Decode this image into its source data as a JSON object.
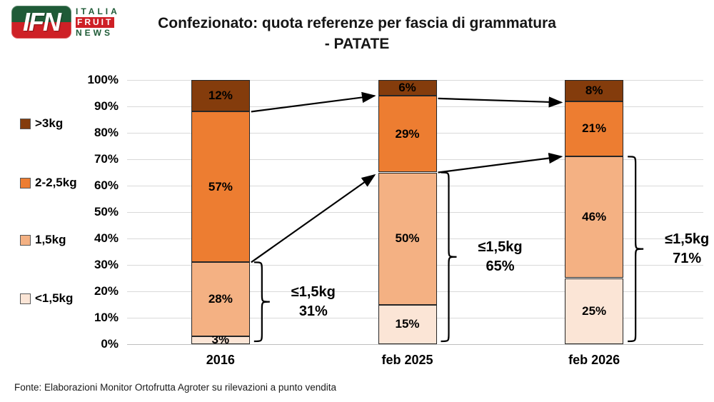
{
  "logo": {
    "mark": "IFN",
    "word1": "ITALIA",
    "word2": "FRUIT",
    "word3": "NEWS",
    "green": "#1f5b37",
    "red": "#ce2026"
  },
  "title": {
    "line1": "Confezionato: quota referenze per fascia di grammatura",
    "line2": "- PATATE"
  },
  "legend": {
    "items": [
      {
        "label": ">3kg",
        "color": "#843C0C"
      },
      {
        "label": "2-2,5kg",
        "color": "#ED7D31"
      },
      {
        "label": "1,5kg",
        "color": "#F4B183"
      },
      {
        "label": "<1,5kg",
        "color": "#FBE5D6"
      }
    ]
  },
  "chart_data": {
    "type": "bar",
    "stacked": true,
    "title": "Confezionato: quota referenze per fascia di grammatura - PATATE",
    "categories": [
      "2016",
      "feb 2025",
      "feb 2026"
    ],
    "series": [
      {
        "name": "<1,5kg",
        "color": "#FBE5D6",
        "values": [
          3,
          15,
          25
        ]
      },
      {
        "name": "1,5kg",
        "color": "#F4B183",
        "values": [
          28,
          50,
          46
        ]
      },
      {
        "name": "2-2,5kg",
        "color": "#ED7D31",
        "values": [
          57,
          29,
          21
        ]
      },
      {
        "name": ">3kg",
        "color": "#843C0C",
        "values": [
          12,
          6,
          8
        ]
      }
    ],
    "value_suffix": "%",
    "ylim": [
      0,
      100
    ],
    "yticks": [
      "0%",
      "10%",
      "20%",
      "30%",
      "40%",
      "50%",
      "60%",
      "70%",
      "80%",
      "90%",
      "100%"
    ],
    "grid": true,
    "legend_position": "left",
    "annotations": [
      {
        "label": "≤1,5kg",
        "value": "31%",
        "category_index": 0,
        "span_pct": [
          0,
          31
        ]
      },
      {
        "label": "≤1,5kg",
        "value": "65%",
        "category_index": 1,
        "span_pct": [
          0,
          65
        ]
      },
      {
        "label": "≤1,5kg",
        "value": "71%",
        "category_index": 2,
        "span_pct": [
          0,
          71
        ]
      }
    ],
    "arrows": [
      {
        "from": {
          "cat": 0,
          "pct": 88
        },
        "to": {
          "cat": 1,
          "pct": 94
        }
      },
      {
        "from": {
          "cat": 0,
          "pct": 31
        },
        "to": {
          "cat": 1,
          "pct": 64
        }
      },
      {
        "from": {
          "cat": 1,
          "pct": 93
        },
        "to": {
          "cat": 2,
          "pct": 91.5
        }
      },
      {
        "from": {
          "cat": 1,
          "pct": 65
        },
        "to": {
          "cat": 2,
          "pct": 71
        }
      }
    ]
  },
  "footer": "Fonte: Elaborazioni Monitor Ortofrutta Agroter su rilevazioni a punto vendita"
}
